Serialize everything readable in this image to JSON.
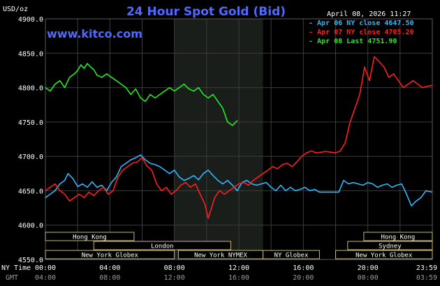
{
  "header": {
    "title": "24 Hour Spot Gold (Bid)",
    "y_unit": "USD/oz",
    "datetime": "April 08, 2026 11:27",
    "brand": "www.kitco.com"
  },
  "colors": {
    "background": "#000000",
    "grid": "#3c3c3c",
    "ny_session_shade": "#1a1e1a",
    "title": "#4f6bff",
    "market_box": "#c8b97a",
    "apr06": "#2fb8ff",
    "apr07": "#ff1e1e",
    "apr08": "#22ee22"
  },
  "axis_labels": {
    "ny_time": "NY Time",
    "gmt": "GMT"
  },
  "market_sessions": {
    "row1": [
      {
        "label": "Hong Kong",
        "start": 0.0,
        "end": 5.5
      },
      {
        "label": "Hong Kong",
        "start": 19.75,
        "end": 24.0
      }
    ],
    "row2": [
      {
        "label": "London",
        "start": 3.0,
        "end": 11.5
      },
      {
        "label": "Sydney",
        "start": 18.75,
        "end": 24.0
      }
    ],
    "row3": [
      {
        "label": "New York Globex",
        "start": 0.0,
        "end": 8.0
      },
      {
        "label": "New York NYMEX",
        "start": 8.25,
        "end": 13.5
      },
      {
        "label": "NY Globex",
        "start": 13.5,
        "end": 17.0
      },
      {
        "label": "New York Globex",
        "start": 18.0,
        "end": 24.0
      }
    ]
  },
  "chart_data": {
    "type": "line",
    "title": "24 Hour Spot Gold (Bid)",
    "ylabel": "USD/oz",
    "xlabel": "NY Time",
    "ylim": [
      4550,
      4900
    ],
    "xlim": [
      0,
      24
    ],
    "yticks": [
      "4550.0",
      "4600.0",
      "4650.0",
      "4700.0",
      "4750.0",
      "4800.0",
      "4850.0",
      "4900.0"
    ],
    "xticks_ny": [
      "00:00",
      "04:00",
      "08:00",
      "12:00",
      "16:00",
      "20:00",
      "23:59"
    ],
    "xticks_gmt": [
      "04:00",
      "08:00",
      "12:00",
      "16:00",
      "20:00",
      "00:00",
      "03:59"
    ],
    "grid": true,
    "legend_position": "top-right",
    "ny_session_shade": [
      8,
      13.5
    ],
    "series": [
      {
        "name": "Apr 06 NY close 4647.50",
        "color": "#2fb8ff",
        "x": [
          0,
          0.3,
          0.6,
          0.9,
          1.2,
          1.4,
          1.7,
          2.0,
          2.3,
          2.6,
          2.9,
          3.2,
          3.5,
          3.8,
          4.1,
          4.4,
          4.7,
          5.0,
          5.3,
          5.6,
          5.9,
          6.2,
          6.5,
          6.8,
          7.1,
          7.4,
          7.7,
          8.0,
          8.3,
          8.6,
          8.9,
          9.2,
          9.5,
          9.8,
          10.1,
          10.4,
          10.7,
          11.0,
          11.3,
          11.6,
          11.9,
          12.2,
          12.5,
          12.8,
          13.1,
          13.4,
          13.7,
          14.0,
          14.3,
          14.6,
          14.9,
          15.2,
          15.5,
          15.8,
          16.1,
          16.4,
          16.7,
          17.0,
          17.3,
          17.6,
          17.9,
          18.2,
          18.5,
          18.8,
          19.1,
          19.4,
          19.7,
          20.0,
          20.3,
          20.6,
          20.9,
          21.2,
          21.5,
          21.8,
          22.1,
          22.4,
          22.7,
          23.0,
          23.3,
          23.6,
          23.98
        ],
        "y": [
          4640,
          4645,
          4650,
          4660,
          4665,
          4675,
          4668,
          4656,
          4660,
          4655,
          4663,
          4655,
          4658,
          4650,
          4662,
          4670,
          4685,
          4690,
          4695,
          4698,
          4702,
          4695,
          4690,
          4688,
          4685,
          4680,
          4675,
          4680,
          4670,
          4665,
          4668,
          4672,
          4666,
          4675,
          4680,
          4672,
          4665,
          4660,
          4665,
          4658,
          4650,
          4662,
          4665,
          4660,
          4658,
          4660,
          4662,
          4655,
          4650,
          4658,
          4650,
          4655,
          4650,
          4652,
          4655,
          4650,
          4652,
          4648,
          4648,
          4648,
          4648,
          4648,
          4665,
          4660,
          4662,
          4660,
          4658,
          4662,
          4660,
          4655,
          4658,
          4660,
          4655,
          4658,
          4660,
          4645,
          4628,
          4635,
          4640,
          4650,
          4648
        ]
      },
      {
        "name": "Apr 07 NY close 4705.20",
        "color": "#ff1e1e",
        "x": [
          0,
          0.3,
          0.6,
          0.9,
          1.2,
          1.5,
          1.8,
          2.1,
          2.4,
          2.7,
          3.0,
          3.3,
          3.6,
          3.9,
          4.2,
          4.5,
          4.8,
          5.1,
          5.4,
          5.7,
          6.0,
          6.3,
          6.6,
          6.9,
          7.2,
          7.5,
          7.8,
          8.1,
          8.4,
          8.7,
          9.0,
          9.3,
          9.5,
          9.7,
          9.9,
          10.1,
          10.3,
          10.5,
          10.8,
          11.1,
          11.4,
          11.7,
          12.0,
          12.3,
          12.6,
          12.9,
          13.2,
          13.5,
          13.8,
          14.1,
          14.4,
          14.7,
          15.0,
          15.3,
          15.6,
          15.9,
          16.2,
          16.5,
          16.8,
          17.1,
          17.4,
          17.7,
          18.0,
          18.3,
          18.6,
          18.9,
          19.2,
          19.5,
          19.8,
          20.1,
          20.4,
          20.7,
          21.0,
          21.3,
          21.6,
          21.9,
          22.2,
          22.5,
          22.8,
          23.1,
          23.4,
          23.7,
          23.98
        ],
        "y": [
          4650,
          4655,
          4660,
          4650,
          4645,
          4635,
          4640,
          4645,
          4640,
          4648,
          4643,
          4650,
          4655,
          4645,
          4650,
          4670,
          4680,
          4685,
          4690,
          4692,
          4698,
          4686,
          4680,
          4660,
          4650,
          4655,
          4645,
          4650,
          4658,
          4662,
          4655,
          4660,
          4650,
          4640,
          4630,
          4610,
          4625,
          4640,
          4650,
          4645,
          4650,
          4655,
          4660,
          4662,
          4658,
          4665,
          4670,
          4675,
          4680,
          4685,
          4682,
          4688,
          4690,
          4685,
          4692,
          4700,
          4705,
          4708,
          4705,
          4706,
          4707,
          4706,
          4705,
          4708,
          4720,
          4750,
          4770,
          4790,
          4830,
          4810,
          4845,
          4838,
          4830,
          4815,
          4820,
          4810,
          4800,
          4805,
          4810,
          4805,
          4800,
          4802,
          4803
        ]
      },
      {
        "name": "Apr 08 Last 4751.90",
        "color": "#22ee22",
        "x": [
          0,
          0.3,
          0.6,
          0.9,
          1.2,
          1.5,
          1.8,
          2.0,
          2.2,
          2.4,
          2.6,
          2.8,
          3.0,
          3.2,
          3.5,
          3.8,
          4.1,
          4.4,
          4.7,
          5.0,
          5.3,
          5.6,
          5.9,
          6.2,
          6.5,
          6.8,
          7.1,
          7.4,
          7.7,
          8.0,
          8.3,
          8.6,
          8.9,
          9.2,
          9.5,
          9.8,
          10.1,
          10.4,
          10.7,
          11.0,
          11.3,
          11.6,
          11.9
        ],
        "y": [
          4800,
          4795,
          4805,
          4810,
          4800,
          4815,
          4820,
          4825,
          4833,
          4828,
          4835,
          4830,
          4826,
          4818,
          4815,
          4820,
          4815,
          4810,
          4805,
          4800,
          4790,
          4798,
          4785,
          4780,
          4790,
          4785,
          4790,
          4795,
          4800,
          4795,
          4800,
          4805,
          4798,
          4795,
          4800,
          4790,
          4785,
          4790,
          4780,
          4770,
          4750,
          4745,
          4752
        ]
      }
    ]
  }
}
